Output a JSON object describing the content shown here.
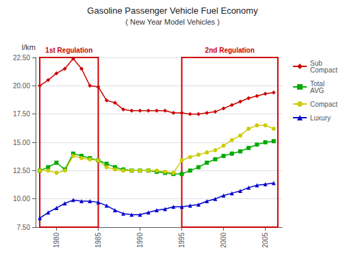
{
  "chart_data": {
    "type": "line",
    "title": "Gasoline Passenger Vehicle Fuel Economy",
    "subtitle": "( New Year Model Vehicles )",
    "y_label": "l/km",
    "x": [
      1978,
      1979,
      1980,
      1981,
      1982,
      1983,
      1984,
      1985,
      1986,
      1987,
      1988,
      1989,
      1990,
      1991,
      1992,
      1993,
      1994,
      1995,
      1996,
      1997,
      1998,
      1999,
      2000,
      2001,
      2002,
      2003,
      2004,
      2005,
      2006
    ],
    "series": [
      {
        "name": "Sub\nCompact",
        "color": "#cc0000",
        "marker": "diamond",
        "values": [
          20.0,
          20.5,
          21.1,
          21.5,
          22.4,
          21.5,
          20.0,
          19.9,
          18.7,
          18.5,
          17.9,
          17.8,
          17.8,
          17.8,
          17.8,
          17.8,
          17.6,
          17.6,
          17.5,
          17.5,
          17.6,
          17.7,
          18.0,
          18.3,
          18.6,
          18.9,
          19.1,
          19.3,
          19.4
        ]
      },
      {
        "name": "Total\nAVG",
        "color": "#00aa00",
        "marker": "square",
        "values": [
          12.5,
          12.8,
          13.2,
          12.6,
          14.0,
          13.8,
          13.6,
          13.4,
          13.1,
          12.8,
          12.6,
          12.5,
          12.5,
          12.5,
          12.4,
          12.3,
          12.2,
          12.2,
          12.5,
          12.8,
          13.2,
          13.5,
          13.8,
          14.0,
          14.2,
          14.5,
          14.8,
          15.0,
          15.1
        ]
      },
      {
        "name": "Compact",
        "color": "#cccc00",
        "marker": "circle",
        "values": [
          12.5,
          12.5,
          12.3,
          12.5,
          13.8,
          13.6,
          13.5,
          13.4,
          12.8,
          12.6,
          12.5,
          12.5,
          12.5,
          12.5,
          12.5,
          12.4,
          12.3,
          13.4,
          13.7,
          13.9,
          14.1,
          14.3,
          14.7,
          15.2,
          15.6,
          16.2,
          16.5,
          16.5,
          16.2
        ]
      },
      {
        "name": "Luxury",
        "color": "#0000cc",
        "marker": "triangle",
        "values": [
          8.3,
          8.8,
          9.2,
          9.6,
          9.9,
          9.8,
          9.8,
          9.7,
          9.4,
          9.0,
          8.7,
          8.6,
          8.6,
          8.8,
          9.0,
          9.1,
          9.3,
          9.3,
          9.4,
          9.5,
          9.8,
          10.0,
          10.3,
          10.5,
          10.7,
          11.0,
          11.2,
          11.3,
          11.4
        ]
      }
    ],
    "xlim": [
      1977.5,
      2007.0
    ],
    "xticks": [
      1980,
      1985,
      1990,
      1995,
      2000,
      2005
    ],
    "ylim": [
      7.5,
      22.5
    ],
    "yticks": [
      {
        "value": 7.5,
        "label": "7.50"
      },
      {
        "value": 10.0,
        "label": "10.00"
      },
      {
        "value": 12.5,
        "label": "12.50"
      },
      {
        "value": 15.0,
        "label": "15.00"
      },
      {
        "value": 17.5,
        "label": "17.50"
      },
      {
        "value": 20.0,
        "label": "20.00"
      },
      {
        "value": 22.5,
        "label": "22.50"
      }
    ],
    "grid": true,
    "legend": "right",
    "annotations": [
      {
        "label": "1st Regulation",
        "x_start": 1978.0,
        "x_end": 1985.0,
        "color": "#cc0000"
      },
      {
        "label": "2nd Regulation",
        "x_start": 1995.0,
        "x_end": 2006.5,
        "color": "#cc0000"
      }
    ]
  }
}
